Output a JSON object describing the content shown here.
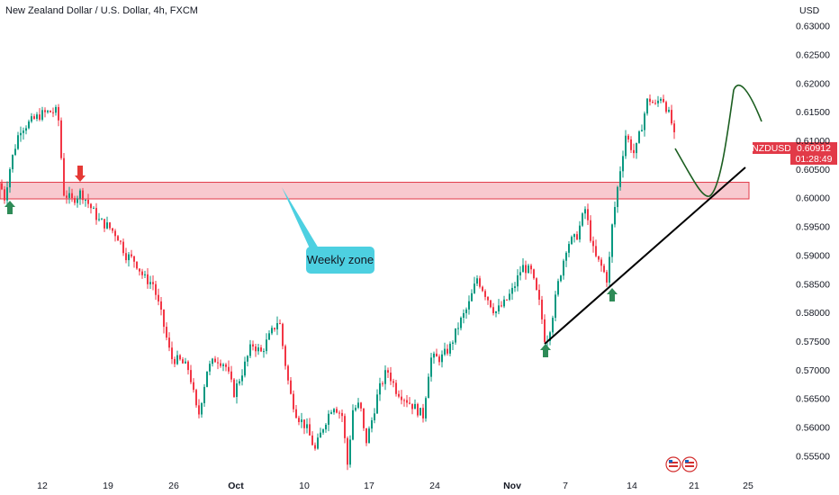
{
  "title": "New Zealand Dollar / U.S. Dollar, 4h, FXCM",
  "colors": {
    "up": "#089981",
    "down": "#f23645",
    "zone_fill": "#f8c9cf",
    "zone_stroke": "#e23a48",
    "callout": "#4dd0e1",
    "arrow_up": "#2e8b57",
    "arrow_down": "#e53935",
    "projection": "#1b5e20",
    "trendline": "#000000"
  },
  "chart_data": {
    "type": "candlestick",
    "currency_label": "USD",
    "ylim": [
      0.5505,
      0.6345
    ],
    "y_ticks": [
      "0.63000",
      "0.62500",
      "0.62000",
      "0.61500",
      "0.61000",
      "0.60500",
      "0.60000",
      "0.59500",
      "0.59000",
      "0.58500",
      "0.58000",
      "0.57500",
      "0.57000",
      "0.56500",
      "0.56000",
      "0.55500"
    ],
    "x_ticks": [
      {
        "label": "12",
        "bold": false
      },
      {
        "label": "19",
        "bold": false
      },
      {
        "label": "26",
        "bold": false
      },
      {
        "label": "Oct",
        "bold": true
      },
      {
        "label": "10",
        "bold": false
      },
      {
        "label": "17",
        "bold": false
      },
      {
        "label": "24",
        "bold": false
      },
      {
        "label": "Nov",
        "bold": true
      },
      {
        "label": "7",
        "bold": false
      },
      {
        "label": "14",
        "bold": false
      },
      {
        "label": "21",
        "bold": false
      },
      {
        "label": "25",
        "bold": false
      }
    ],
    "price_path": [
      [
        0,
        0.6025
      ],
      [
        5,
        0.6
      ],
      [
        12,
        0.606
      ],
      [
        22,
        0.612
      ],
      [
        32,
        0.613
      ],
      [
        45,
        0.6145
      ],
      [
        55,
        0.615
      ],
      [
        62,
        0.615
      ],
      [
        66,
        0.613
      ],
      [
        70,
        0.601
      ],
      [
        80,
        0.5995
      ],
      [
        90,
        0.601
      ],
      [
        100,
        0.5985
      ],
      [
        110,
        0.596
      ],
      [
        120,
        0.595
      ],
      [
        130,
        0.5935
      ],
      [
        140,
        0.59
      ],
      [
        150,
        0.589
      ],
      [
        160,
        0.586
      ],
      [
        170,
        0.585
      ],
      [
        180,
        0.579
      ],
      [
        190,
        0.572
      ],
      [
        200,
        0.5715
      ],
      [
        210,
        0.57
      ],
      [
        220,
        0.5615
      ],
      [
        230,
        0.57
      ],
      [
        240,
        0.572
      ],
      [
        250,
        0.571
      ],
      [
        260,
        0.566
      ],
      [
        270,
        0.57
      ],
      [
        280,
        0.5745
      ],
      [
        290,
        0.573
      ],
      [
        300,
        0.576
      ],
      [
        310,
        0.579
      ],
      [
        315,
        0.573
      ],
      [
        322,
        0.566
      ],
      [
        330,
        0.562
      ],
      [
        340,
        0.56
      ],
      [
        350,
        0.556
      ],
      [
        360,
        0.5605
      ],
      [
        370,
        0.564
      ],
      [
        380,
        0.562
      ],
      [
        386,
        0.5535
      ],
      [
        392,
        0.563
      ],
      [
        400,
        0.564
      ],
      [
        406,
        0.557
      ],
      [
        412,
        0.5605
      ],
      [
        420,
        0.566
      ],
      [
        430,
        0.57
      ],
      [
        440,
        0.5665
      ],
      [
        450,
        0.565
      ],
      [
        460,
        0.5635
      ],
      [
        470,
        0.562
      ],
      [
        478,
        0.572
      ],
      [
        490,
        0.572
      ],
      [
        500,
        0.574
      ],
      [
        510,
        0.578
      ],
      [
        520,
        0.581
      ],
      [
        530,
        0.586
      ],
      [
        540,
        0.583
      ],
      [
        550,
        0.58
      ],
      [
        560,
        0.5815
      ],
      [
        570,
        0.584
      ],
      [
        580,
        0.588
      ],
      [
        590,
        0.587
      ],
      [
        600,
        0.581
      ],
      [
        606,
        0.5745
      ],
      [
        612,
        0.578
      ],
      [
        620,
        0.585
      ],
      [
        630,
        0.592
      ],
      [
        640,
        0.593
      ],
      [
        650,
        0.598
      ],
      [
        660,
        0.59
      ],
      [
        668,
        0.588
      ],
      [
        675,
        0.5855
      ],
      [
        680,
        0.595
      ],
      [
        688,
        0.604
      ],
      [
        695,
        0.611
      ],
      [
        705,
        0.6075
      ],
      [
        712,
        0.612
      ],
      [
        720,
        0.6175
      ],
      [
        728,
        0.616
      ],
      [
        735,
        0.618
      ],
      [
        742,
        0.615
      ],
      [
        748,
        0.612
      ],
      [
        750,
        0.6091
      ]
    ],
    "weekly_zone": {
      "top": 0.6027,
      "bottom": 0.5998,
      "label": "Weekly zone"
    },
    "trendline": [
      [
        0.5745,
        0.6053
      ]
    ],
    "up_arrows": [
      0.5995,
      0.5733,
      0.5845
    ],
    "down_arrows": [
      0.6035
    ],
    "price_tag": {
      "symbol": "NZDUSD",
      "price": "0.60912",
      "timer": "01:28:49"
    }
  }
}
